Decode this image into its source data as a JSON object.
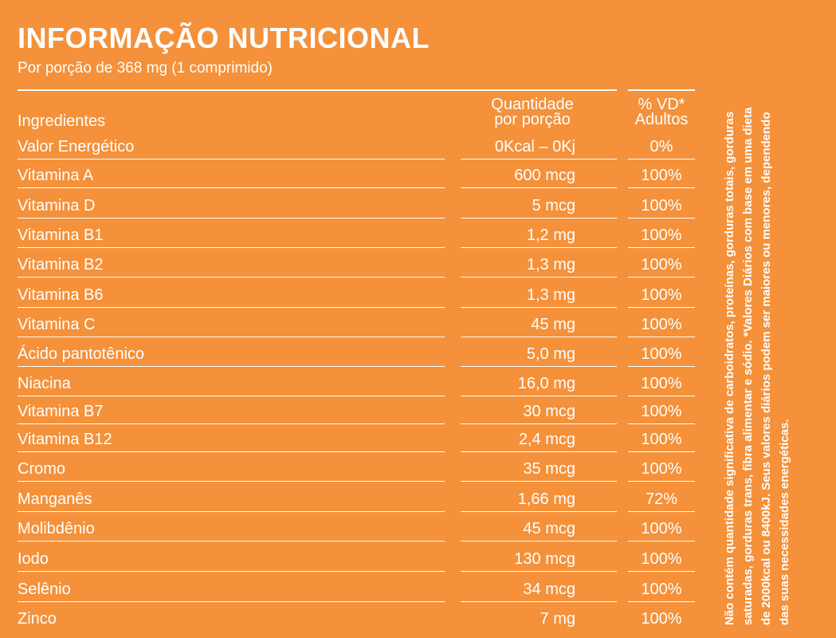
{
  "header": {
    "title": "INFORMAÇÃO NUTRICIONAL",
    "subtitle": "Por porção de 368 mg  (1 comprimido)"
  },
  "table": {
    "columns": {
      "ingredients": "Ingredientes",
      "quantity_line1": "Quantidade",
      "quantity_line2": "por porção",
      "vd_line1": "% VD*",
      "vd_line2": "Adultos"
    },
    "rows": [
      {
        "name": "Valor Energético",
        "qty": "0Kcal – 0Kj",
        "vd": "0%"
      },
      {
        "name": "Vitamina A",
        "qty": "600 mcg",
        "vd": "100%"
      },
      {
        "name": "Vitamina D",
        "qty": "5 mcg",
        "vd": "100%"
      },
      {
        "name": "Vitamina B1",
        "qty": "1,2 mg",
        "vd": "100%"
      },
      {
        "name": "Vitamina B2",
        "qty": "1,3 mg",
        "vd": "100%"
      },
      {
        "name": "Vitamina B6",
        "qty": "1,3 mg",
        "vd": "100%"
      },
      {
        "name": "Vitamina C",
        "qty": "45 mg",
        "vd": "100%"
      },
      {
        "name": "Ácido pantotênico",
        "qty": "5,0 mg",
        "vd": "100%"
      },
      {
        "name": "Niacina",
        "qty": "16,0 mg",
        "vd": "100%"
      },
      {
        "name": "Vitamina B7",
        "qty": "30 mcg",
        "vd": "100%"
      },
      {
        "name": "Vitamina B12",
        "qty": "2,4 mcg",
        "vd": "100%"
      },
      {
        "name": "Cromo",
        "qty": "35 mcg",
        "vd": "100%"
      },
      {
        "name": "Manganês",
        "qty": "1,66 mg",
        "vd": "72%"
      },
      {
        "name": "Molibdênio",
        "qty": "45 mcg",
        "vd": "100%"
      },
      {
        "name": "Iodo",
        "qty": "130 mcg",
        "vd": "100%"
      },
      {
        "name": "Selênio",
        "qty": "34 mcg",
        "vd": "100%"
      },
      {
        "name": "Zinco",
        "qty": "7 mg",
        "vd": "100%"
      }
    ]
  },
  "footnote": "Não contém quantidade significativa de carboidratos, proteínas, gorduras totais, gorduras saturadas, gorduras trans, fibra alimentar e sódio. *Valores Diários com base em uma dieta de 2000kcal ou 8400kJ. Seus valores diários podem ser maiores ou menores, dependendo das suas necessidades energéticas.",
  "colors": {
    "background": "#f4913a",
    "text": "#ffffff"
  }
}
